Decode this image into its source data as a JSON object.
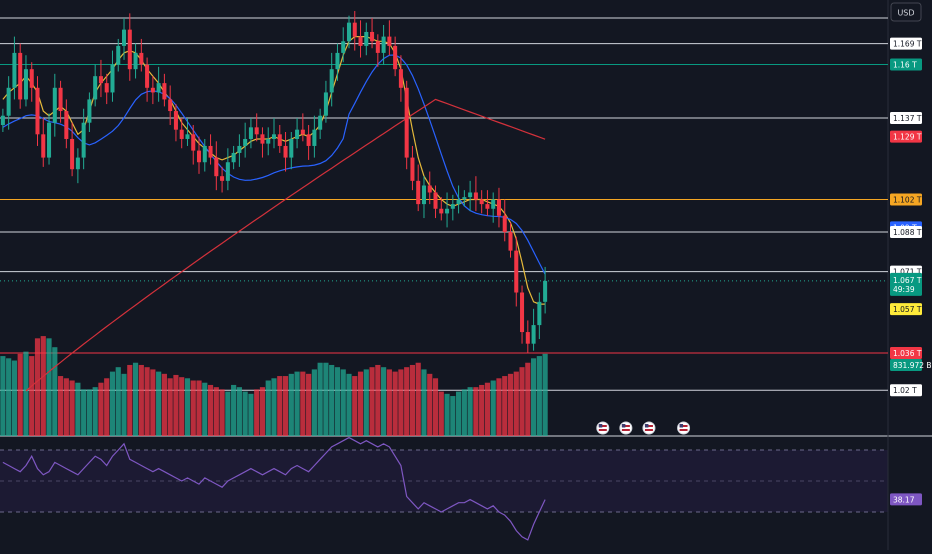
{
  "header": {
    "currency": "USD"
  },
  "colors": {
    "background": "#131722",
    "up": "#22ab94",
    "down": "#f23645",
    "ma_fast": "#e5b93a",
    "ma_mid": "#2962ff",
    "ma_slow": "#d3313b",
    "rsi": "#7e57c2",
    "level_line": "#d1d4dc",
    "level_green": "#089981",
    "level_orange": "#f5a623"
  },
  "price_labels": [
    {
      "text": "1.169 T",
      "value": 1.169,
      "bg": "#ffffff",
      "fg": "#131722",
      "line": true,
      "line_color": "#d1d4dc"
    },
    {
      "text": "1.16 T",
      "value": 1.16,
      "bg": "#089981",
      "fg": "#ffffff",
      "line": true,
      "line_color": "#089981"
    },
    {
      "text": "1.137 T",
      "value": 1.137,
      "bg": "#ffffff",
      "fg": "#131722",
      "line": true,
      "line_color": "#d1d4dc"
    },
    {
      "text": "1.129 T",
      "value": 1.129,
      "bg": "#f23645",
      "fg": "#ffffff",
      "line": false
    },
    {
      "text": "1.102 T",
      "value": 1.102,
      "bg": "#f5a623",
      "fg": "#131722",
      "line": true,
      "line_color": "#f5a623"
    },
    {
      "text": "1.09 T",
      "value": 1.09,
      "bg": "#2962ff",
      "fg": "#ffffff",
      "line": false
    },
    {
      "text": "1.088 T",
      "value": 1.088,
      "bg": "#ffffff",
      "fg": "#131722",
      "line": true,
      "line_color": "#d1d4dc"
    },
    {
      "text": "1.071 T",
      "value": 1.071,
      "bg": "#ffffff",
      "fg": "#131722",
      "line": true,
      "line_color": "#d1d4dc"
    },
    {
      "text": "1.036 T",
      "value": 1.036,
      "bg": "#f23645",
      "fg": "#ffffff",
      "line": true,
      "line_color": "#f23645"
    },
    {
      "text": "1.02 T",
      "value": 1.02,
      "bg": "#ffffff",
      "fg": "#131722",
      "line": true,
      "line_color": "#d1d4dc"
    }
  ],
  "current_price": {
    "price": "1.067 T",
    "countdown": "49:39",
    "value": 1.067,
    "bg": "#089981"
  },
  "ma_price_label": {
    "text": "1.057 T",
    "value": 1.057,
    "bg": "#ffeb3b",
    "fg": "#131722"
  },
  "volume_label": {
    "text": "831.972 B",
    "bg": "#089981"
  },
  "top_line": {
    "value": 1.18
  },
  "rsi_label": {
    "text": "38.17",
    "value": 38.17,
    "bg": "#7e57c2"
  },
  "event_markers": [
    {
      "icon": "us-flag-icon",
      "x_index": 104
    },
    {
      "icon": "us-flag-icon",
      "x_index": 108
    },
    {
      "icon": "us-flag-icon",
      "x_index": 112
    },
    {
      "icon": "us-flag-icon",
      "x_index": 118
    }
  ],
  "chart_data": {
    "type": "candlestick",
    "price_range": [
      1.0,
      1.182
    ],
    "rsi_range": [
      0,
      100
    ],
    "rsi_bands": [
      70,
      30
    ],
    "candles_close_path": [
      1.138,
      1.15,
      1.165,
      1.145,
      1.158,
      1.15,
      1.13,
      1.12,
      1.135,
      1.15,
      1.14,
      1.128,
      1.115,
      1.12,
      1.135,
      1.145,
      1.155,
      1.152,
      1.148,
      1.16,
      1.168,
      1.175,
      1.158,
      1.165,
      1.16,
      1.15,
      1.148,
      1.152,
      1.145,
      1.14,
      1.132,
      1.128,
      1.13,
      1.123,
      1.118,
      1.125,
      1.12,
      1.112,
      1.11,
      1.118,
      1.122,
      1.125,
      1.128,
      1.133,
      1.13,
      1.126,
      1.128,
      1.13,
      1.125,
      1.12,
      1.128,
      1.132,
      1.13,
      1.125,
      1.132,
      1.138,
      1.148,
      1.158,
      1.165,
      1.17,
      1.178,
      1.172,
      1.168,
      1.174,
      1.17,
      1.165,
      1.172,
      1.168,
      1.158,
      1.15,
      1.12,
      1.11,
      1.1,
      1.108,
      1.105,
      1.098,
      1.096,
      1.098,
      1.1,
      1.102,
      1.103,
      1.105,
      1.102,
      1.1,
      1.098,
      1.102,
      1.095,
      1.088,
      1.08,
      1.062,
      1.045,
      1.04,
      1.048,
      1.058,
      1.067
    ],
    "volumes": [
      0.72,
      0.7,
      0.68,
      0.74,
      0.76,
      0.72,
      0.88,
      0.9,
      0.88,
      0.8,
      0.54,
      0.52,
      0.5,
      0.48,
      0.42,
      0.42,
      0.44,
      0.48,
      0.52,
      0.58,
      0.62,
      0.56,
      0.64,
      0.66,
      0.64,
      0.62,
      0.6,
      0.58,
      0.56,
      0.52,
      0.55,
      0.53,
      0.52,
      0.5,
      0.5,
      0.48,
      0.46,
      0.44,
      0.42,
      0.4,
      0.46,
      0.44,
      0.4,
      0.38,
      0.42,
      0.44,
      0.5,
      0.52,
      0.54,
      0.54,
      0.56,
      0.58,
      0.58,
      0.56,
      0.6,
      0.66,
      0.66,
      0.64,
      0.62,
      0.6,
      0.56,
      0.54,
      0.58,
      0.6,
      0.62,
      0.64,
      0.62,
      0.6,
      0.58,
      0.6,
      0.62,
      0.64,
      0.66,
      0.6,
      0.56,
      0.52,
      0.4,
      0.38,
      0.36,
      0.4,
      0.42,
      0.44,
      0.44,
      0.46,
      0.48,
      0.5,
      0.52,
      0.54,
      0.56,
      0.58,
      0.62,
      0.66,
      0.7,
      0.72,
      0.74
    ],
    "rsi": [
      62,
      60,
      58,
      56,
      60,
      66,
      58,
      54,
      56,
      62,
      60,
      58,
      56,
      54,
      58,
      62,
      66,
      64,
      60,
      66,
      70,
      74,
      64,
      62,
      60,
      58,
      56,
      58,
      56,
      54,
      52,
      50,
      52,
      50,
      48,
      52,
      50,
      48,
      46,
      50,
      52,
      54,
      56,
      58,
      56,
      54,
      56,
      58,
      56,
      54,
      58,
      60,
      58,
      56,
      60,
      64,
      68,
      72,
      74,
      76,
      78,
      76,
      74,
      76,
      74,
      72,
      74,
      72,
      66,
      60,
      40,
      36,
      32,
      36,
      34,
      32,
      30,
      32,
      34,
      36,
      36,
      38,
      36,
      34,
      32,
      34,
      30,
      28,
      24,
      18,
      14,
      12,
      22,
      30,
      38
    ],
    "ma_fast_values": [
      1.145,
      1.148,
      1.15,
      1.152,
      1.155,
      1.152,
      1.148,
      1.14,
      1.138,
      1.14,
      1.142,
      1.14,
      1.135,
      1.13,
      1.132,
      1.14,
      1.148,
      1.152,
      1.155,
      1.158,
      1.162,
      1.165,
      1.166,
      1.165,
      1.162,
      1.158,
      1.155,
      1.152,
      1.148,
      1.145,
      1.14,
      1.135,
      1.132,
      1.129,
      1.126,
      1.124,
      1.122,
      1.12,
      1.119,
      1.12,
      1.121,
      1.123,
      1.125,
      1.127,
      1.128,
      1.128,
      1.128,
      1.129,
      1.128,
      1.127,
      1.128,
      1.129,
      1.13,
      1.129,
      1.131,
      1.134,
      1.14,
      1.148,
      1.156,
      1.164,
      1.17,
      1.172,
      1.172,
      1.172,
      1.171,
      1.17,
      1.17,
      1.169,
      1.165,
      1.158,
      1.145,
      1.132,
      1.12,
      1.112,
      1.108,
      1.105,
      1.102,
      1.1,
      1.099,
      1.1,
      1.101,
      1.102,
      1.102,
      1.102,
      1.101,
      1.1,
      1.099,
      1.096,
      1.092,
      1.085,
      1.075,
      1.064,
      1.058,
      1.057,
      1.057
    ]
  }
}
